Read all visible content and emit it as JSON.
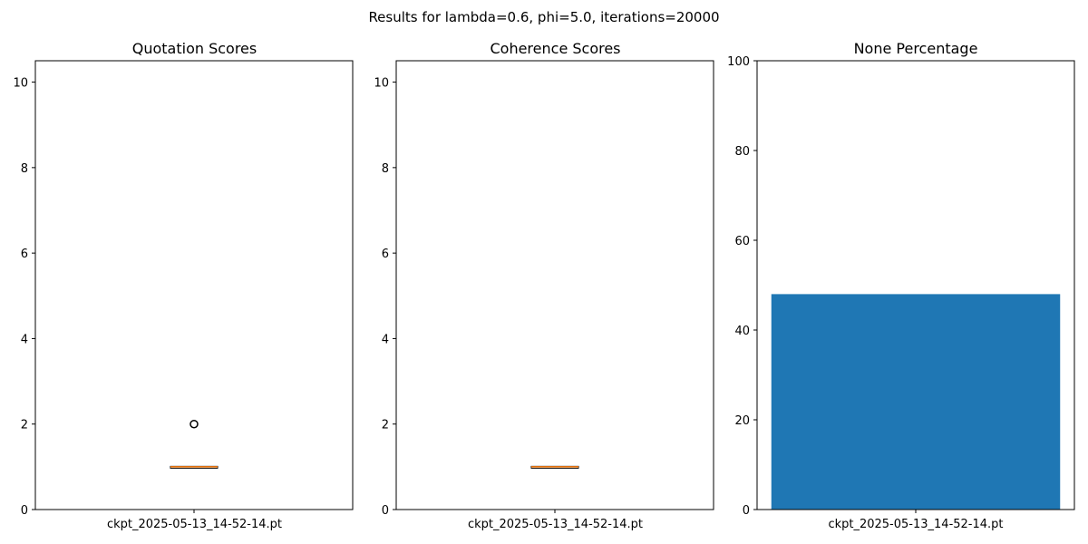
{
  "suptitle": "Results for lambda=0.6, phi=5.0, iterations=20000",
  "colors": {
    "bar": "#1f77b4",
    "median": "#ff7f0e",
    "box": "#000000"
  },
  "chart_data": [
    {
      "type": "box",
      "title": "Quotation Scores",
      "categories": [
        "ckpt_2025-05-13_14-52-14.pt"
      ],
      "ylim": [
        0,
        10.5
      ],
      "yticks": [
        0,
        2,
        4,
        6,
        8,
        10
      ],
      "boxes": [
        {
          "q1": 1,
          "median": 1,
          "q3": 1,
          "whisker_low": 1,
          "whisker_high": 1,
          "outliers": [
            2
          ]
        }
      ],
      "grid": false
    },
    {
      "type": "box",
      "title": "Coherence Scores",
      "categories": [
        "ckpt_2025-05-13_14-52-14.pt"
      ],
      "ylim": [
        0,
        10.5
      ],
      "yticks": [
        0,
        2,
        4,
        6,
        8,
        10
      ],
      "boxes": [
        {
          "q1": 1,
          "median": 1,
          "q3": 1,
          "whisker_low": 1,
          "whisker_high": 1,
          "outliers": []
        }
      ],
      "grid": false
    },
    {
      "type": "bar",
      "title": "None Percentage",
      "categories": [
        "ckpt_2025-05-13_14-52-14.pt"
      ],
      "values": [
        48
      ],
      "ylim": [
        0,
        100
      ],
      "yticks": [
        0,
        20,
        40,
        60,
        80,
        100
      ],
      "grid": false
    }
  ]
}
